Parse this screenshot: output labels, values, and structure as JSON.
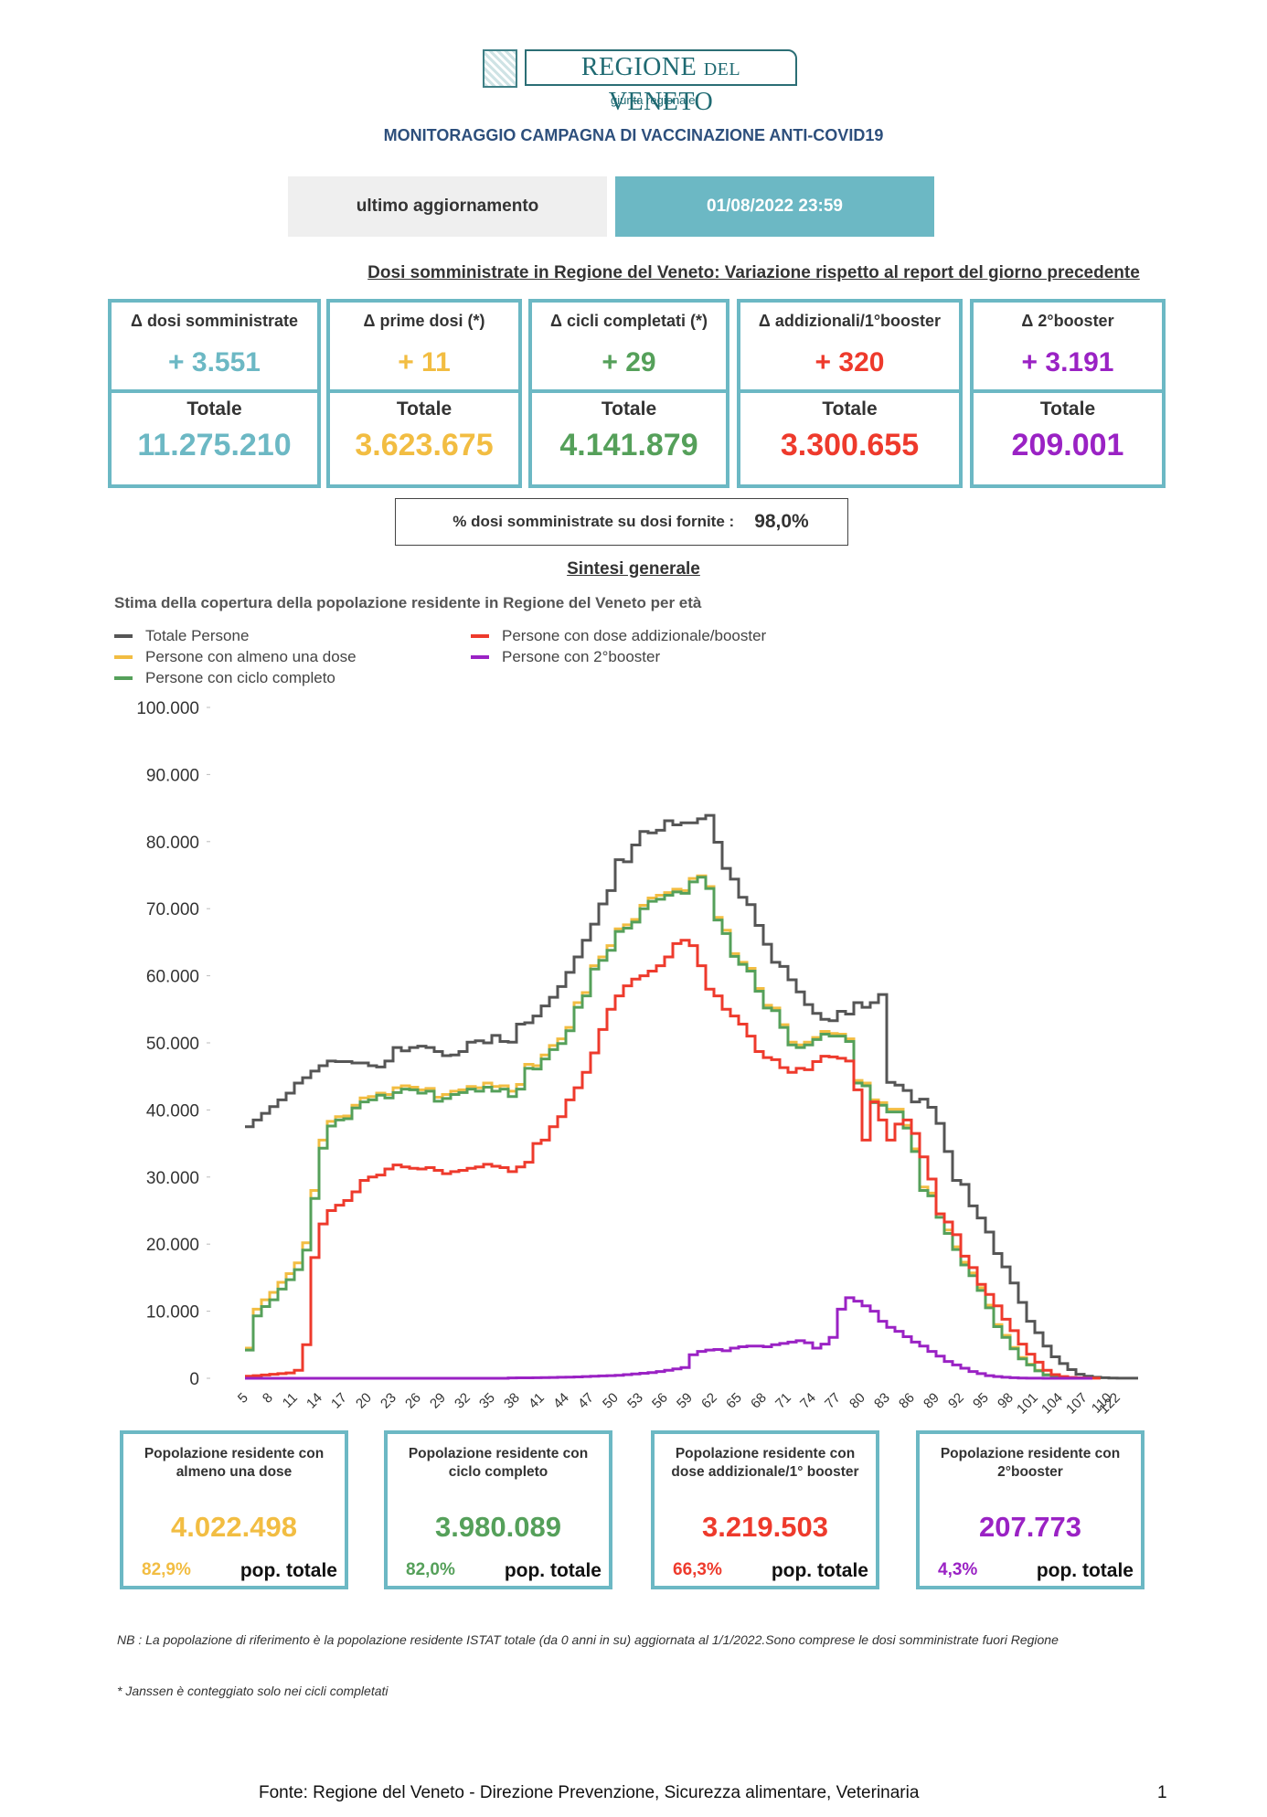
{
  "header": {
    "logo_main": "REGIONE",
    "logo_del": "DEL",
    "logo_end": "VENETO",
    "logo_sub": "giunta regionale",
    "title": "MONITORAGGIO CAMPAGNA DI VACCINAZIONE ANTI-COVID19",
    "update_label": "ultimo aggiornamento",
    "update_value": "01/08/2022 23:59"
  },
  "variation": {
    "heading": "Dosi somministrate in Regione del Veneto: Variazione rispetto al report del giorno precedente",
    "total_label": "Totale",
    "kpis": [
      {
        "label": "Δ dosi somministrate",
        "delta": "+ 3.551",
        "total": "11.275.210",
        "color": "#6cb8c4"
      },
      {
        "label": "Δ prime dosi (*)",
        "delta": "+ 11",
        "total": "3.623.675",
        "color": "#f2bd42"
      },
      {
        "label": "Δ cicli completati (*)",
        "delta": "+ 29",
        "total": "4.141.879",
        "color": "#55a05a"
      },
      {
        "label": "Δ addizionali/1°booster",
        "delta": "+ 320",
        "total": "3.300.655",
        "color": "#ee3a2c"
      },
      {
        "label": "Δ 2°booster",
        "delta": "+ 3.191",
        "total": "209.001",
        "color": "#9a22c4"
      }
    ],
    "pct_label": "% dosi somministrate su dosi fornite :",
    "pct_value": "98,0%"
  },
  "sintesi": {
    "heading": "Sintesi generale"
  },
  "chart_data": {
    "type": "line",
    "step": true,
    "title": "Stima della copertura della popolazione residente in Regione del Veneto per età",
    "xlabel": "",
    "ylabel": "",
    "ylim": [
      0,
      100000
    ],
    "yticks": [
      0,
      10000,
      20000,
      30000,
      40000,
      50000,
      60000,
      70000,
      80000,
      90000,
      100000
    ],
    "ytick_labels": [
      "0",
      "10.000",
      "20.000",
      "30.000",
      "40.000",
      "50.000",
      "60.000",
      "70.000",
      "80.000",
      "90.000",
      "100.000"
    ],
    "xtick_labels": [
      "5",
      "8",
      "11",
      "14",
      "17",
      "20",
      "23",
      "26",
      "29",
      "32",
      "35",
      "38",
      "41",
      "44",
      "47",
      "50",
      "53",
      "56",
      "59",
      "62",
      "65",
      "68",
      "71",
      "74",
      "77",
      "80",
      "83",
      "86",
      "89",
      "92",
      "95",
      "98",
      "101",
      "104",
      "107",
      "110",
      "122"
    ],
    "legend_position": "top-left",
    "grid": false,
    "x": [
      5,
      6,
      7,
      8,
      9,
      10,
      11,
      12,
      13,
      14,
      15,
      16,
      17,
      18,
      19,
      20,
      21,
      22,
      23,
      24,
      25,
      26,
      27,
      28,
      29,
      30,
      31,
      32,
      33,
      34,
      35,
      36,
      37,
      38,
      39,
      40,
      41,
      42,
      43,
      44,
      45,
      46,
      47,
      48,
      49,
      50,
      51,
      52,
      53,
      54,
      55,
      56,
      57,
      58,
      59,
      60,
      61,
      62,
      63,
      64,
      65,
      66,
      67,
      68,
      69,
      70,
      71,
      72,
      73,
      74,
      75,
      76,
      77,
      78,
      79,
      80,
      81,
      82,
      83,
      84,
      85,
      86,
      87,
      88,
      89,
      90,
      91,
      92,
      93,
      94,
      95,
      96,
      97,
      98,
      99,
      100,
      101,
      102,
      103,
      104,
      105,
      106,
      107,
      108,
      109,
      110,
      122
    ],
    "series": [
      {
        "name": "Totale Persone",
        "color": "#555555",
        "values": [
          37500,
          38500,
          39500,
          40500,
          41500,
          42500,
          44000,
          44800,
          45800,
          46600,
          47300,
          47200,
          47200,
          47000,
          47000,
          46600,
          46400,
          47300,
          49300,
          48800,
          49300,
          49500,
          49300,
          48700,
          48100,
          48200,
          48700,
          50100,
          50300,
          50000,
          51100,
          50200,
          50100,
          52800,
          53000,
          54000,
          55500,
          56800,
          58400,
          60500,
          62800,
          65300,
          67700,
          70700,
          72700,
          77300,
          77000,
          79500,
          81500,
          81300,
          81700,
          83100,
          82500,
          82800,
          82800,
          83400,
          83900,
          79900,
          76000,
          74400,
          71700,
          70600,
          67500,
          64700,
          62000,
          61400,
          59400,
          57600,
          55700,
          54400,
          53500,
          53300,
          54700,
          54300,
          56000,
          55300,
          56000,
          57200,
          44100,
          43700,
          42900,
          41200,
          41600,
          40400,
          38000,
          33800,
          29500,
          28900,
          25700,
          23900,
          21800,
          18600,
          16600,
          14200,
          11300,
          8500,
          6800,
          4800,
          3200,
          2200,
          1300,
          600,
          300,
          150,
          80,
          40,
          20
        ],
        "note": "visual estimate"
      },
      {
        "name": "Persone con almeno una dose",
        "color": "#f2bd42",
        "values": [
          4500,
          10300,
          11700,
          12800,
          14300,
          15600,
          17200,
          20200,
          28000,
          35500,
          38300,
          39000,
          39100,
          40700,
          41800,
          42000,
          42500,
          42300,
          43300,
          43600,
          43400,
          43000,
          43200,
          41900,
          42300,
          42800,
          43000,
          43500,
          43300,
          44000,
          43500,
          43600,
          42800,
          43800,
          46800,
          46600,
          48200,
          49600,
          50600,
          52300,
          56000,
          57500,
          61500,
          62800,
          64500,
          67000,
          67600,
          68400,
          70500,
          71600,
          72000,
          72400,
          72900,
          72700,
          74500,
          74900,
          73300,
          68700,
          66800,
          63300,
          62000,
          61100,
          58100,
          55600,
          55200,
          52700,
          50100,
          49700,
          50100,
          50800,
          51700,
          51400,
          51300,
          50600,
          44400,
          44000,
          41500,
          41100,
          40100,
          40100,
          37700,
          34200,
          28500,
          27600,
          24500,
          22100,
          19600,
          17300,
          15700,
          13500,
          10900,
          8000,
          6400,
          4600,
          3100,
          2100,
          1200,
          550,
          280,
          130,
          70,
          35,
          15
        ]
      },
      {
        "name": "Persone con ciclo completo",
        "color": "#55a05a",
        "values": [
          4200,
          9300,
          10700,
          11700,
          13300,
          14700,
          16200,
          19100,
          26800,
          34300,
          37600,
          38500,
          38700,
          40300,
          41200,
          41500,
          42200,
          41800,
          42600,
          43100,
          43000,
          42500,
          42800,
          41300,
          41700,
          42300,
          42600,
          43100,
          42800,
          43400,
          42800,
          43100,
          42000,
          43100,
          46200,
          46100,
          47600,
          49000,
          49900,
          51800,
          55300,
          57000,
          61000,
          62300,
          63800,
          66600,
          67100,
          68000,
          70000,
          71100,
          71400,
          72000,
          72500,
          72300,
          74000,
          74700,
          73000,
          68300,
          66300,
          62900,
          61700,
          60700,
          57700,
          55200,
          54800,
          52300,
          49700,
          49300,
          49700,
          50500,
          51300,
          51000,
          51000,
          50200,
          44000,
          43600,
          41100,
          40700,
          39700,
          39700,
          37300,
          33800,
          28000,
          27200,
          24000,
          21600,
          19200,
          16900,
          15300,
          13100,
          10500,
          7700,
          6100,
          4400,
          2900,
          2000,
          1100,
          500,
          250,
          120,
          60,
          30,
          15
        ]
      },
      {
        "name": "Persone con dose addizionale/booster",
        "color": "#ee3a2c",
        "values": [
          300,
          400,
          500,
          600,
          700,
          800,
          1200,
          5000,
          18000,
          23000,
          25000,
          25800,
          26500,
          27800,
          29500,
          30000,
          30300,
          31200,
          31800,
          31500,
          31300,
          31200,
          31400,
          31000,
          30500,
          30800,
          31000,
          31300,
          31500,
          31900,
          31600,
          31400,
          30800,
          31500,
          32200,
          35000,
          35500,
          37500,
          39000,
          41500,
          43300,
          45600,
          48500,
          52000,
          55000,
          57000,
          58500,
          59500,
          60000,
          60700,
          61500,
          62800,
          64800,
          65300,
          64500,
          61500,
          58000,
          57000,
          55000,
          54000,
          52800,
          51000,
          48700,
          47800,
          47500,
          46300,
          45600,
          46200,
          46000,
          47200,
          48000,
          47900,
          47700,
          47300,
          43000,
          35500,
          41200,
          38500,
          35500,
          37900,
          38500,
          36500,
          33000,
          29700,
          24500,
          23300,
          21400,
          18200,
          16500,
          14000,
          12500,
          10800,
          8800,
          7100,
          5100,
          3600,
          2400,
          1200,
          550,
          250,
          120,
          60,
          30,
          15
        ]
      },
      {
        "name": "Persone con 2°booster",
        "color": "#9a22c4",
        "values": [
          0,
          0,
          0,
          0,
          0,
          0,
          0,
          0,
          0,
          0,
          0,
          0,
          0,
          0,
          0,
          0,
          0,
          0,
          0,
          0,
          0,
          0,
          0,
          0,
          0,
          0,
          0,
          0,
          0,
          0,
          0,
          0,
          50,
          60,
          70,
          80,
          100,
          120,
          150,
          170,
          200,
          250,
          300,
          350,
          400,
          450,
          550,
          650,
          750,
          850,
          1000,
          1200,
          1400,
          1600,
          3500,
          4000,
          4200,
          4300,
          4100,
          4500,
          4700,
          4800,
          4800,
          4700,
          5000,
          5200,
          5400,
          5600,
          5300,
          4500,
          5100,
          6100,
          10300,
          12000,
          11500,
          10800,
          10000,
          8500,
          7600,
          7000,
          6200,
          5400,
          4800,
          4000,
          3300,
          2500,
          2000,
          1500,
          1000,
          700,
          400,
          250,
          150,
          80,
          40,
          20,
          10,
          5,
          0,
          0,
          0,
          0,
          0
        ],
        "note": "visual estimate"
      }
    ]
  },
  "population": {
    "pop_total_label": "pop. totale",
    "boxes": [
      {
        "label": "Popolazione residente con almeno una dose",
        "value": "4.022.498",
        "pct": "82,9%",
        "color": "#f2bd42"
      },
      {
        "label": "Popolazione residente con ciclo completo",
        "value": "3.980.089",
        "pct": "82,0%",
        "color": "#55a05a"
      },
      {
        "label": "Popolazione residente con dose addizionale/1° booster",
        "value": "3.219.503",
        "pct": "66,3%",
        "color": "#ee3a2c"
      },
      {
        "label": "Popolazione residente con 2°booster",
        "value": "207.773",
        "pct": "4,3%",
        "color": "#9a22c4"
      }
    ]
  },
  "notes": {
    "nb": "NB : La popolazione di riferimento è la popolazione residente ISTAT totale (da 0 anni in su) aggiornata  al 1/1/2022.Sono comprese le dosi somministrate fuori Regione",
    "janssen": "* Janssen è conteggiato solo nei cicli completati"
  },
  "footer": {
    "source": "Fonte: Regione del Veneto - Direzione Prevenzione, Sicurezza alimentare, Veterinaria",
    "page": "1"
  }
}
